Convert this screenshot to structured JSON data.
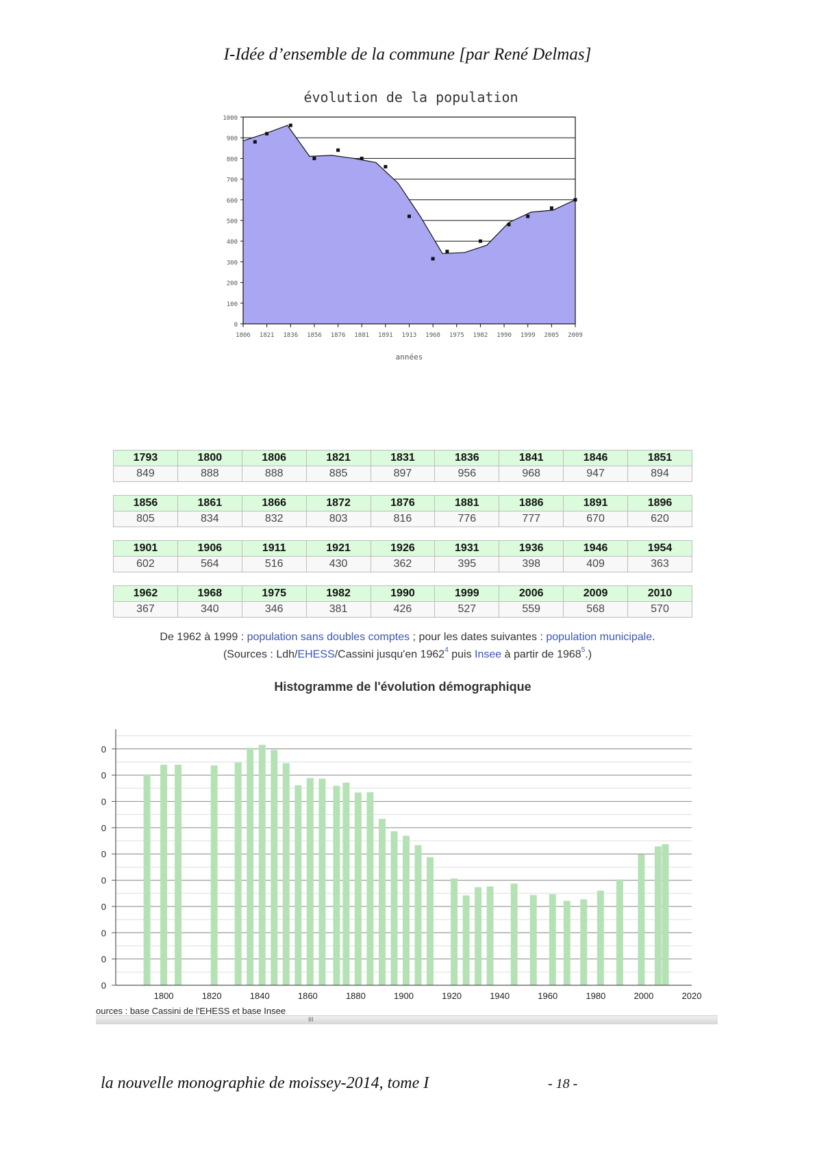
{
  "header": {
    "title": "I-Idée d’ensemble de la commune [par René Delmas]"
  },
  "area_chart": {
    "title": "évolution de la population",
    "xlabel": "années",
    "fill": "#aaa7f2",
    "y_ticks": [
      "0",
      "100",
      "200",
      "300",
      "400",
      "500",
      "600",
      "700",
      "800",
      "900",
      "1000"
    ],
    "x_ticks": [
      "1806",
      "1821",
      "1836",
      "1856",
      "1876",
      "1881",
      "1891",
      "1913",
      "1968",
      "1975",
      "1982",
      "1990",
      "1999",
      "2005",
      "2009"
    ]
  },
  "table": {
    "rows": [
      {
        "years": [
          "1793",
          "1800",
          "1806",
          "1821",
          "1831",
          "1836",
          "1841",
          "1846",
          "1851"
        ],
        "values": [
          "849",
          "888",
          "888",
          "885",
          "897",
          "956",
          "968",
          "947",
          "894"
        ]
      },
      {
        "years": [
          "1856",
          "1861",
          "1866",
          "1872",
          "1876",
          "1881",
          "1886",
          "1891",
          "1896"
        ],
        "values": [
          "805",
          "834",
          "832",
          "803",
          "816",
          "776",
          "777",
          "670",
          "620"
        ]
      },
      {
        "years": [
          "1901",
          "1906",
          "1911",
          "1921",
          "1926",
          "1931",
          "1936",
          "1946",
          "1954"
        ],
        "values": [
          "602",
          "564",
          "516",
          "430",
          "362",
          "395",
          "398",
          "409",
          "363"
        ]
      },
      {
        "years": [
          "1962",
          "1968",
          "1975",
          "1982",
          "1990",
          "1999",
          "2006",
          "2009",
          "2010"
        ],
        "values": [
          "367",
          "340",
          "346",
          "381",
          "426",
          "527",
          "559",
          "568",
          "570"
        ]
      }
    ]
  },
  "notes": {
    "l1a": "De 1962 à 1999 : ",
    "l1b": "population sans doubles comptes",
    "l1c": " ; pour les dates suivantes : ",
    "l1d": "population municipale",
    "l1e": ".",
    "l2a": "(Sources : Ldh/",
    "l2b": "EHESS",
    "l2c": "/Cassini jusqu'en 1962",
    "l2d": "4",
    "l2e": " puis ",
    "l2f": "Insee",
    "l2g": " à partir de 1968",
    "l2h": "5",
    "l2i": ".)"
  },
  "chart_data": [
    {
      "type": "area",
      "title": "évolution de la population",
      "xlabel": "années",
      "ylabel": "",
      "ylim": [
        0,
        1000
      ],
      "grid": true,
      "series": [
        {
          "values": [
            885,
            920,
            960,
            810,
            815,
            800,
            780,
            680,
            520,
            340,
            345,
            380,
            490,
            540,
            550,
            600
          ]
        }
      ],
      "markers": [
        {
          "i": 0.5,
          "y": 880
        },
        {
          "i": 1,
          "y": 920
        },
        {
          "i": 2,
          "y": 960
        },
        {
          "i": 3,
          "y": 800
        },
        {
          "i": 4,
          "y": 840
        },
        {
          "i": 5,
          "y": 800
        },
        {
          "i": 6,
          "y": 760
        },
        {
          "i": 7,
          "y": 520
        },
        {
          "i": 8,
          "y": 315
        },
        {
          "i": 8.6,
          "y": 350
        },
        {
          "i": 10,
          "y": 400
        },
        {
          "i": 11.2,
          "y": 480
        },
        {
          "i": 12,
          "y": 520
        },
        {
          "i": 13,
          "y": 560
        },
        {
          "i": 14,
          "y": 600
        }
      ]
    },
    {
      "type": "bar",
      "title": "Histogramme de l'évolution démographique",
      "xlim": [
        1780,
        2020
      ],
      "ylim": [
        0,
        1000
      ],
      "x_ticks": [
        "1800",
        "1820",
        "1840",
        "1860",
        "1880",
        "1900",
        "1920",
        "1940",
        "1960",
        "1980",
        "2000",
        "2020"
      ],
      "y_ticks": [
        "0",
        "0",
        "0",
        "0",
        "0",
        "0",
        "0",
        "0",
        "0",
        "0"
      ],
      "bar_color": "#b5e2b5",
      "x": [
        1793,
        1800,
        1806,
        1821,
        1831,
        1836,
        1841,
        1846,
        1851,
        1856,
        1861,
        1866,
        1872,
        1876,
        1881,
        1886,
        1891,
        1896,
        1901,
        1906,
        1911,
        1921,
        1926,
        1931,
        1936,
        1946,
        1954,
        1962,
        1968,
        1975,
        1982,
        1990,
        1999,
        2006,
        2009
      ],
      "values": [
        849,
        888,
        888,
        885,
        897,
        956,
        968,
        947,
        894,
        805,
        834,
        832,
        803,
        816,
        776,
        777,
        670,
        620,
        602,
        564,
        516,
        430,
        362,
        395,
        398,
        409,
        363,
        367,
        340,
        346,
        381,
        426,
        527,
        559,
        568
      ]
    }
  ],
  "sources_text": "ources : base Cassini de l'EHESS et base Insee",
  "scroll_grip": "III",
  "footer": {
    "left": "la nouvelle monographie de moissey-2014, tome I",
    "right": "- 18 -"
  }
}
